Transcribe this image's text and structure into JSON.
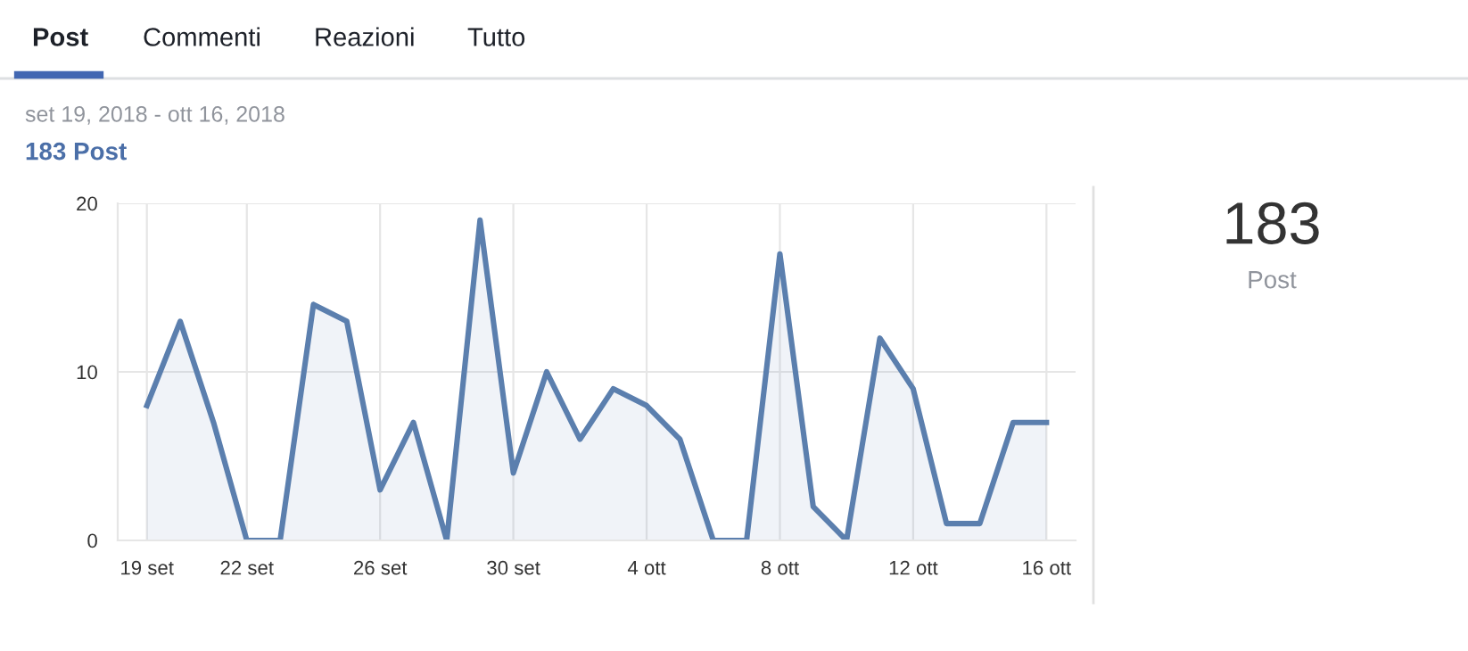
{
  "chart_data": {
    "type": "area",
    "title": "183 Post",
    "subtitle": "set 19, 2018 - ott 16, 2018",
    "annotations": [
      "Post",
      "Commenti",
      "Reazioni",
      "Tutto",
      "183",
      "Post"
    ],
    "x": [
      "2018-09-19",
      "2018-09-20",
      "2018-09-21",
      "2018-09-22",
      "2018-09-23",
      "2018-09-24",
      "2018-09-25",
      "2018-09-26",
      "2018-09-27",
      "2018-09-28",
      "2018-09-29",
      "2018-09-30",
      "2018-10-01",
      "2018-10-02",
      "2018-10-03",
      "2018-10-04",
      "2018-10-05",
      "2018-10-06",
      "2018-10-07",
      "2018-10-08",
      "2018-10-09",
      "2018-10-10",
      "2018-10-11",
      "2018-10-12",
      "2018-10-13",
      "2018-10-14",
      "2018-10-15",
      "2018-10-16"
    ],
    "series": [
      {
        "color": "#5b7fae",
        "values": [
          8,
          13,
          7,
          0,
          0,
          14,
          13,
          3,
          7,
          0,
          19,
          4,
          10,
          6,
          9,
          8,
          6,
          0,
          0,
          17,
          2,
          0,
          12,
          9,
          1,
          1,
          7,
          7
        ]
      }
    ],
    "xlim": [
      "2018-09-18T03:00",
      "2018-10-16T21:00"
    ],
    "xticks": [
      {
        "value": "2018-09-19",
        "label": "19 set"
      },
      {
        "value": "2018-09-22",
        "label": "22 set"
      },
      {
        "value": "2018-09-26",
        "label": "26 set"
      },
      {
        "value": "2018-09-30",
        "label": "30 set"
      },
      {
        "value": "2018-10-04",
        "label": "4 ott"
      },
      {
        "value": "2018-10-08",
        "label": "8 ott"
      },
      {
        "value": "2018-10-12",
        "label": "12 ott"
      },
      {
        "value": "2018-10-16",
        "label": "16 ott"
      }
    ],
    "ylim": [
      0,
      20
    ],
    "yticks": [
      0,
      10,
      20
    ],
    "grid": true,
    "marker": "none",
    "line_style": "solid",
    "legend": false
  }
}
